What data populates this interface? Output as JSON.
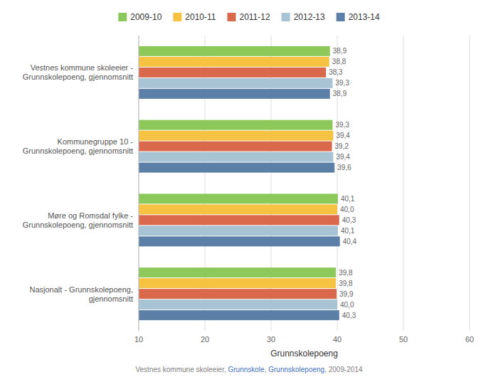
{
  "chart_data": {
    "type": "bar",
    "orientation": "horizontal",
    "categories": [
      "Vestnes kommune skoleeier -\nGrunnskolepoeng, gjennomsnitt",
      "Kommunegruppe 10 -\nGrunnskolepoeng, gjennomsnitt",
      "Møre og Romsdal fylke -\nGrunnskolepoeng, gjennomsnitt",
      "Nasjonalt - Grunnskolepoeng,\ngjennomsnitt"
    ],
    "series": [
      {
        "name": "2009-10",
        "color": "#8DC85A",
        "values": [
          38.9,
          39.3,
          40.1,
          39.8
        ],
        "value_labels": [
          "38,9",
          "39,3",
          "40,1",
          "39,8"
        ]
      },
      {
        "name": "2010-11",
        "color": "#F5C242",
        "values": [
          38.8,
          39.4,
          40.0,
          39.8
        ],
        "value_labels": [
          "38,8",
          "39,4",
          "40,0",
          "39,8"
        ]
      },
      {
        "name": "2011-12",
        "color": "#D9694A",
        "values": [
          38.3,
          39.2,
          40.3,
          39.9
        ],
        "value_labels": [
          "38,3",
          "39,2",
          "40,3",
          "39,9"
        ]
      },
      {
        "name": "2012-13",
        "color": "#A8C4D4",
        "values": [
          39.3,
          39.4,
          40.1,
          40.0
        ],
        "value_labels": [
          "39,3",
          "39,4",
          "40,1",
          "40,0"
        ]
      },
      {
        "name": "2013-14",
        "color": "#5B7FA6",
        "values": [
          38.9,
          39.6,
          40.4,
          40.3
        ],
        "value_labels": [
          "38,9",
          "39,6",
          "40,4",
          "40,3"
        ]
      }
    ],
    "x_label": "Grunnskolepoeng",
    "xlim": [
      10,
      60
    ],
    "xticks": [
      10,
      20,
      30,
      40,
      50,
      60
    ],
    "grid": true,
    "legend": "top",
    "data_labels": true,
    "footer": [
      {
        "text": "Vestnes kommune skoleeier, ",
        "color": "#808080"
      },
      {
        "text": "Grunnskole",
        "color": "#4472C4"
      },
      {
        "text": ", ",
        "color": "#808080"
      },
      {
        "text": "Grunnskolepoeng",
        "color": "#4472C4"
      },
      {
        "text": ", 2009-2014",
        "color": "#808080"
      }
    ]
  }
}
